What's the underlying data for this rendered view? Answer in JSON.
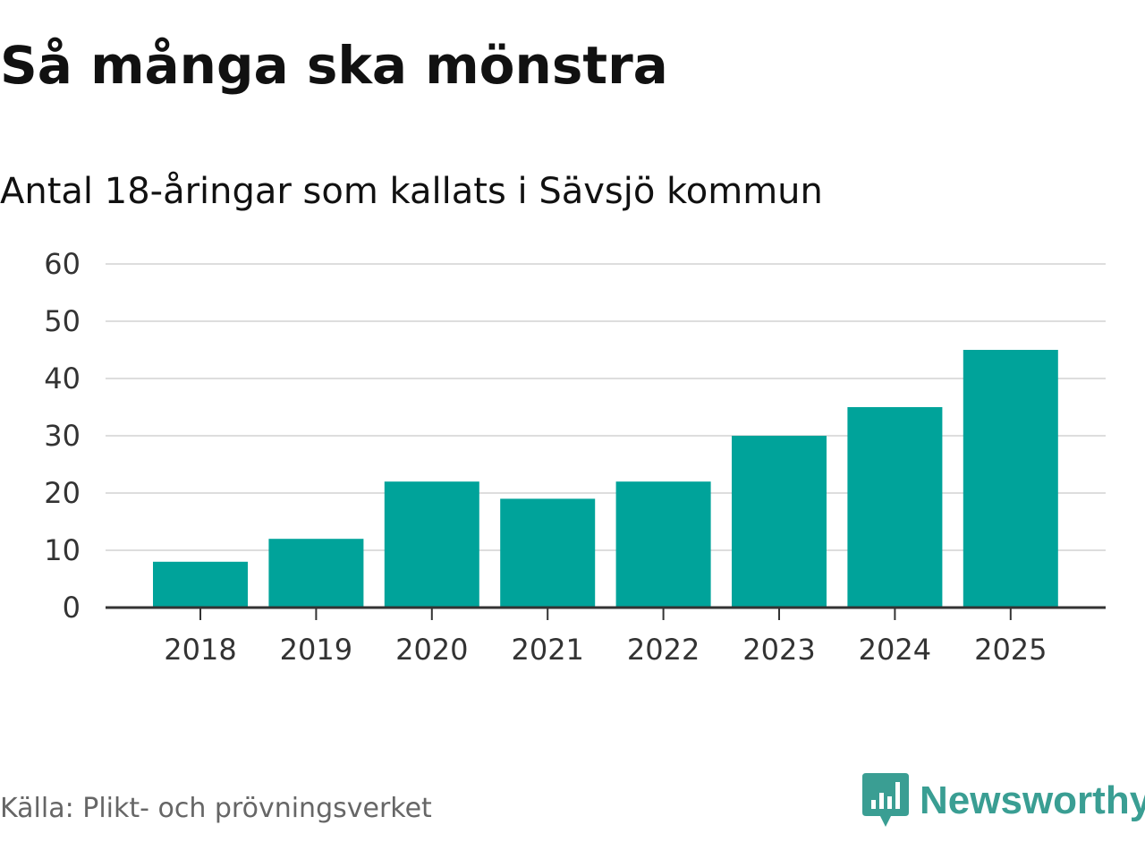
{
  "title": "Så många ska mönstra",
  "subtitle": "Antal 18-åringar som kallats i Sävsjö kommun",
  "source": "Källa: Plikt- och prövningsverket",
  "logo": {
    "name": "Newsworthy",
    "icon": "newsworthy-chart-icon",
    "color": "#3a9e93"
  },
  "chart_data": {
    "type": "bar",
    "categories": [
      "2018",
      "2019",
      "2020",
      "2021",
      "2022",
      "2023",
      "2024",
      "2025"
    ],
    "values": [
      8,
      12,
      22,
      19,
      22,
      30,
      35,
      45
    ],
    "title": "Så många ska mönstra",
    "subtitle": "Antal 18-åringar som kallats i Sävsjö kommun",
    "xlabel": "",
    "ylabel": "",
    "ylim": [
      0,
      60
    ],
    "yticks": [
      0,
      10,
      20,
      30,
      40,
      50,
      60
    ],
    "grid": true,
    "legend": "none",
    "bar_color": "#00a39a",
    "grid_color": "#dddddd",
    "axis_color": "#333333"
  }
}
